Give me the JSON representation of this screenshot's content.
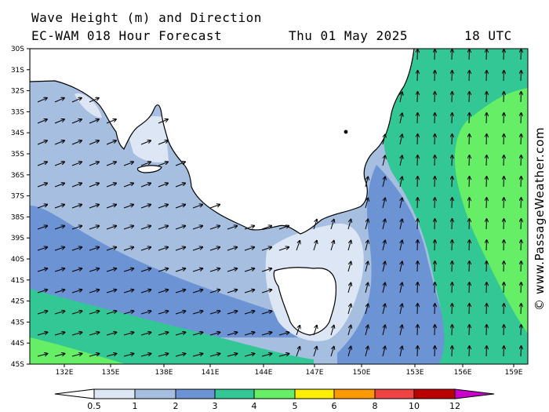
{
  "header": {
    "title": "Wave Height (m) and Direction",
    "model_line": "EC-WAM 018 Hour Forecast",
    "date": "Thu 01 May 2025",
    "time": "18 UTC"
  },
  "credit": "© www.PassageWeather.com",
  "lat_labels": [
    "30S",
    "31S",
    "32S",
    "33S",
    "34S",
    "35S",
    "36S",
    "37S",
    "38S",
    "39S",
    "40S",
    "41S",
    "42S",
    "43S",
    "44S",
    "45S"
  ],
  "lon_labels": [
    "132E",
    "135E",
    "138E",
    "141E",
    "144E",
    "147E",
    "150E",
    "153E",
    "156E",
    "159E"
  ],
  "colorbar": {
    "labels": [
      "0.5",
      "1",
      "2",
      "3",
      "4",
      "5",
      "6",
      "8",
      "10",
      "12"
    ],
    "colors": [
      "#ffffff",
      "#dde6f4",
      "#a6bfe0",
      "#6c93d4",
      "#33c796",
      "#66ee66",
      "#ffee00",
      "#ff9900",
      "#ee4444",
      "#bb0000",
      "#cc00cc"
    ]
  }
}
